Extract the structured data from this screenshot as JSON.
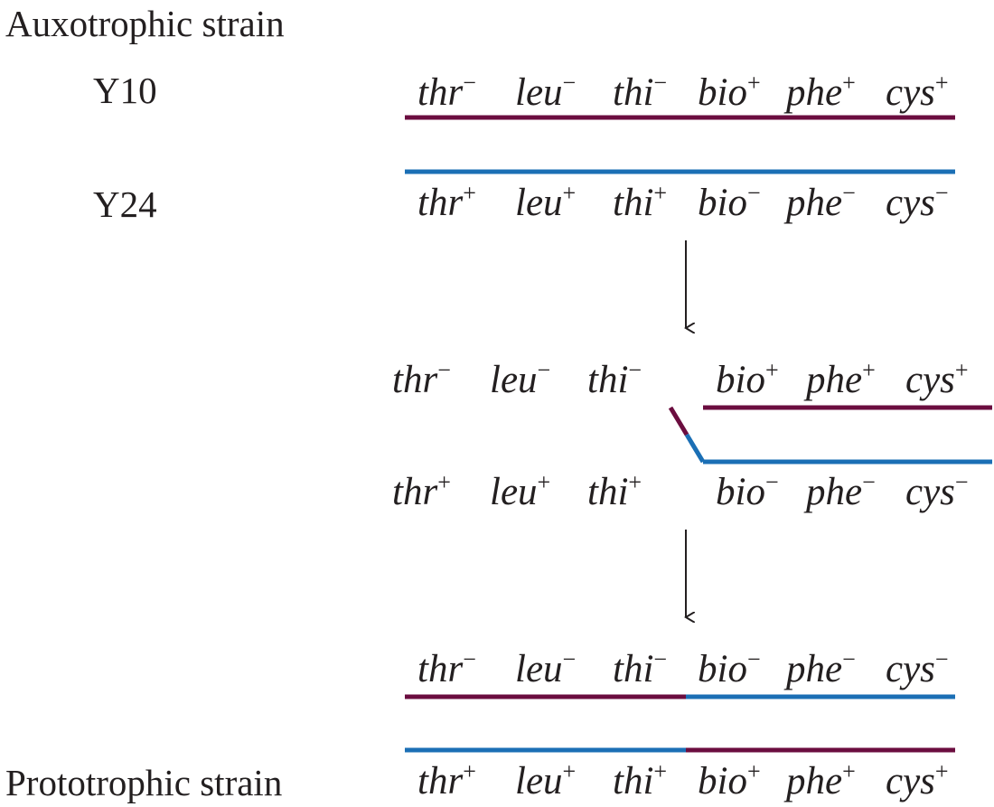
{
  "labels": {
    "auxotrophic": "Auxotrophic strain",
    "y10": "Y10",
    "y24": "Y24",
    "prototrophic": "Prototrophic strain"
  },
  "colors": {
    "y10_strand": "#6b0d3f",
    "y24_strand": "#1b6fb5",
    "text": "#231f20",
    "arrow": "#231f20"
  },
  "genes": [
    "thr",
    "leu",
    "thi",
    "bio",
    "phe",
    "cys"
  ],
  "rows": {
    "y10": [
      "−",
      "−",
      "−",
      "+",
      "+",
      "+"
    ],
    "y24": [
      "+",
      "+",
      "+",
      "−",
      "−",
      "−"
    ],
    "cross_top": [
      "−",
      "−",
      "−",
      "+",
      "+",
      "+"
    ],
    "cross_bottom": [
      "+",
      "+",
      "+",
      "−",
      "−",
      "−"
    ],
    "result_top": [
      "−",
      "−",
      "−",
      "−",
      "−",
      "−"
    ],
    "result_bottom": [
      "+",
      "+",
      "+",
      "+",
      "+",
      "+"
    ]
  }
}
